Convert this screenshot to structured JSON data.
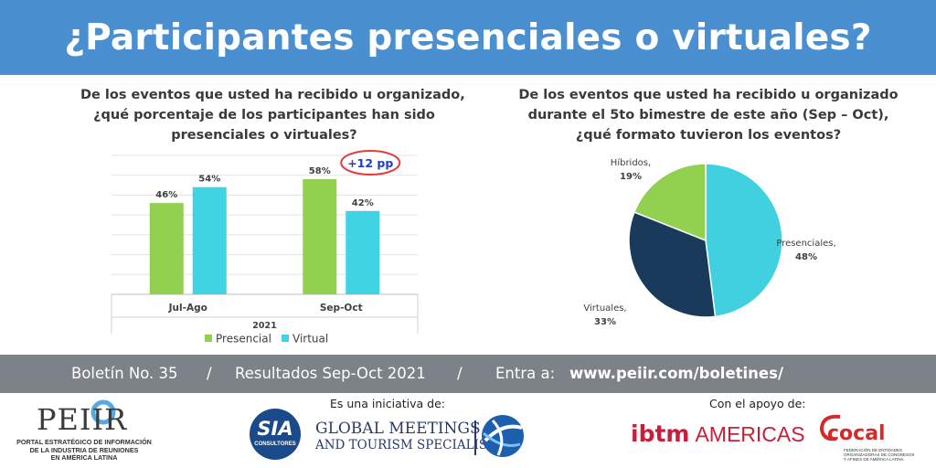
{
  "header": {
    "title": "¿Participantes presenciales o virtuales?"
  },
  "bar_title_lines": [
    "De los eventos que usted ha recibido u organizado,",
    "¿qué porcentaje de los participantes han sido",
    "presenciales o virtuales?"
  ],
  "pie_title_lines": [
    "De los eventos que usted ha recibido u organizado",
    "durante el 5to bimestre de este año (Sep – Oct),",
    "¿qué formato tuvieron los eventos?"
  ],
  "chart_data": [
    {
      "type": "bar",
      "categories": [
        "Jul-Ago",
        "Sep-Oct"
      ],
      "series": [
        {
          "name": "Presencial",
          "values": [
            46,
            58
          ],
          "labels": [
            "46%",
            "58%"
          ],
          "color": "#92d050"
        },
        {
          "name": "Virtual",
          "values": [
            54,
            42
          ],
          "labels": [
            "54%",
            "42%"
          ],
          "color": "#3fd3e3"
        }
      ],
      "xlabel": "2021",
      "ylim": [
        0,
        70
      ],
      "grid": true,
      "legend": "bottom",
      "annotation": {
        "text": "+12 pp",
        "color": "#1f3fbf",
        "ring_color": "#e53939"
      }
    },
    {
      "type": "pie",
      "slices": [
        {
          "name": "Presenciales,",
          "value": 48,
          "label": "48%",
          "color": "#40d0e0"
        },
        {
          "name": "Virtuales,",
          "value": 33,
          "label": "33%",
          "color": "#1a3a5c"
        },
        {
          "name": "Híbridos,",
          "value": 19,
          "label": "19%",
          "color": "#92d050"
        }
      ]
    }
  ],
  "info_band": {
    "bulletin": "Boletín No. 35",
    "sep1": "/",
    "results": "Resultados Sep-Oct 2021",
    "sep2": "/",
    "enter": "Entra a:",
    "url": "www.peiir.com/boletines/"
  },
  "footer": {
    "initiative_label": "Es una iniciativa de:",
    "support_label": "Con el apoyo de:",
    "peiir_logo": {
      "word": "PEIIR",
      "lines": [
        "PORTAL ESTRATÉGICO DE INFORMACIÓN",
        "DE LA INDUSTRIA DE REUNIONES",
        "EN AMÉRICA LATINA"
      ]
    },
    "sia_logo": {
      "word": "SIA",
      "sub": "CONSULTORES"
    },
    "gmts_logo": {
      "line1": "GLOBAL MEETINGS",
      "line2": "AND TOURISM SPECIALISTS"
    },
    "ibtm_logo": {
      "word": "ibtm",
      "region": "AMERICAS"
    },
    "cocal_logo": {
      "word": "cocal",
      "lines": [
        "FEDERACIÓN DE ENTIDADES",
        "ORGANIZADORAS DE CONGRESOS",
        "Y AFINES DE AMÉRICA LATINA"
      ]
    }
  }
}
